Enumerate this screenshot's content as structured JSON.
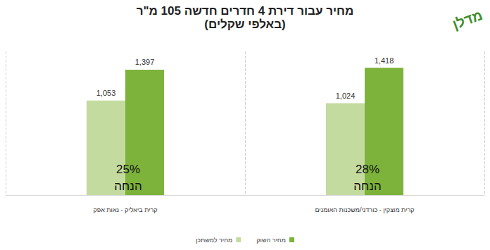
{
  "chart_data": {
    "type": "bar",
    "title": "מחיר עבור דירת 4 חדרים חדשה 105 מ\"ר",
    "subtitle": "(באלפי שקלים)",
    "logo_text": "מדלן",
    "categories": [
      "קרית מוצקין - כורדני/משכנות האומנים",
      "קרית ביאליק - נאות אפק"
    ],
    "series": [
      {
        "name": "מחיר למשתכן",
        "color": "#c4dba0",
        "values": [
          1024,
          1053
        ],
        "value_labels": [
          "1,024",
          "1,053"
        ]
      },
      {
        "name": "מחיר השוק",
        "color": "#7db33b",
        "values": [
          1418,
          1397
        ],
        "value_labels": [
          "1,418",
          "1,397"
        ]
      }
    ],
    "annotations": [
      "28%\nהנחה",
      "25%\nהנחה"
    ],
    "ylim": [
      0,
      1600
    ],
    "grid": true,
    "legend": "bottom",
    "data_labels": true,
    "tick_labels": "x"
  }
}
